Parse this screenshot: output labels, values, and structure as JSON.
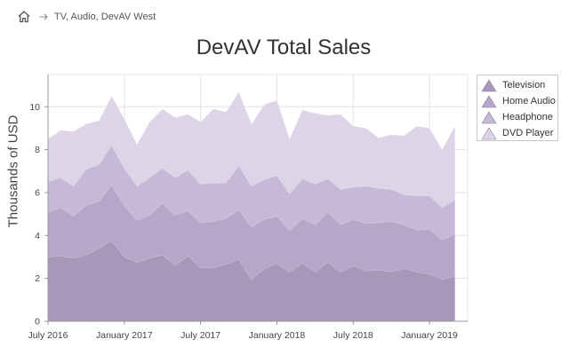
{
  "breadcrumb": {
    "home_icon": "home-icon",
    "separator_icon": "arrow-right-icon",
    "path": "TV, Audio, DevAV West"
  },
  "colors": {
    "Television": "#a797b9",
    "Home Audio": "#b6a7c9",
    "Headphone": "#c6b9d8",
    "DVD Player": "#ddd5e7",
    "grid": "#e3e3e3",
    "axis": "#9a9a9a"
  },
  "chart_data": {
    "type": "area",
    "stacked": true,
    "title": "DevAV Total Sales",
    "ylabel": "Thousands of USD",
    "xlabel": "",
    "ylim": [
      0,
      11.5
    ],
    "yticks": [
      0,
      2,
      4,
      6,
      8,
      10
    ],
    "xlim": [
      "2016-07",
      "2019-04"
    ],
    "xticks": [
      {
        "date": "2016-07",
        "label": "July 2016"
      },
      {
        "date": "2017-01",
        "label": "January 2017"
      },
      {
        "date": "2017-07",
        "label": "July 2017"
      },
      {
        "date": "2018-01",
        "label": "January 2018"
      },
      {
        "date": "2018-07",
        "label": "July 2018"
      },
      {
        "date": "2019-01",
        "label": "January 2019"
      }
    ],
    "grid": true,
    "legend_position": "top-right",
    "x": [
      "2016-07",
      "2016-08",
      "2016-09",
      "2016-10",
      "2016-11",
      "2016-12",
      "2017-01",
      "2017-02",
      "2017-03",
      "2017-04",
      "2017-05",
      "2017-06",
      "2017-07",
      "2017-08",
      "2017-09",
      "2017-10",
      "2017-11",
      "2017-12",
      "2018-01",
      "2018-02",
      "2018-03",
      "2018-04",
      "2018-05",
      "2018-06",
      "2018-07",
      "2018-08",
      "2018-09",
      "2018-10",
      "2018-11",
      "2018-12",
      "2019-01",
      "2019-02",
      "2019-03"
    ],
    "series": [
      {
        "name": "Television",
        "values": [
          3.0,
          3.05,
          2.95,
          3.1,
          3.4,
          3.75,
          3.0,
          2.75,
          2.95,
          3.1,
          2.6,
          3.05,
          2.5,
          2.5,
          2.65,
          2.9,
          1.95,
          2.45,
          2.7,
          2.3,
          2.7,
          2.3,
          2.75,
          2.3,
          2.6,
          2.35,
          2.4,
          2.3,
          2.45,
          2.3,
          2.2,
          1.95,
          2.1
        ]
      },
      {
        "name": "Home Audio",
        "values": [
          2.1,
          2.25,
          1.95,
          2.3,
          2.2,
          2.6,
          2.4,
          1.95,
          2.0,
          2.4,
          2.35,
          2.1,
          2.1,
          2.15,
          2.15,
          2.3,
          2.45,
          2.3,
          2.2,
          1.95,
          2.1,
          2.2,
          2.35,
          2.2,
          2.15,
          2.2,
          2.2,
          2.35,
          2.05,
          1.95,
          2.1,
          1.85,
          1.95
        ]
      },
      {
        "name": "Headphone",
        "values": [
          1.4,
          1.4,
          1.4,
          1.7,
          1.7,
          1.85,
          1.75,
          1.6,
          1.75,
          1.65,
          1.75,
          1.9,
          1.8,
          1.8,
          1.65,
          2.05,
          1.9,
          1.85,
          1.9,
          1.7,
          1.85,
          1.9,
          1.55,
          1.65,
          1.5,
          1.75,
          1.6,
          1.5,
          1.4,
          1.6,
          1.55,
          1.5,
          1.6
        ]
      },
      {
        "name": "DVD Player",
        "values": [
          2.0,
          2.2,
          2.55,
          2.1,
          2.05,
          2.3,
          2.3,
          1.95,
          2.6,
          2.75,
          2.8,
          2.6,
          2.9,
          3.45,
          3.3,
          3.45,
          2.9,
          3.5,
          3.5,
          2.55,
          3.2,
          3.3,
          2.95,
          3.5,
          2.85,
          2.7,
          2.35,
          2.55,
          2.75,
          3.25,
          3.15,
          2.7,
          3.45
        ]
      }
    ]
  }
}
